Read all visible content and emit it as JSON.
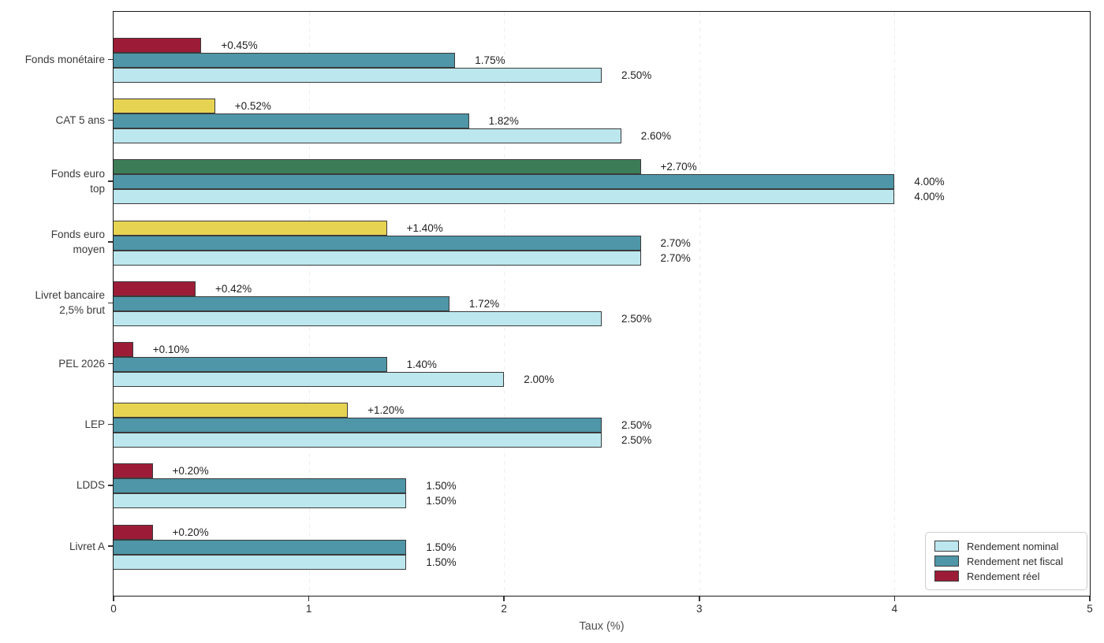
{
  "chart_data": {
    "type": "bar",
    "orientation": "horizontal",
    "title": "",
    "xlabel": "Taux (%)",
    "ylabel": "",
    "xlim": [
      0,
      5
    ],
    "xticks": [
      0,
      1,
      2,
      3,
      4,
      5
    ],
    "grid": "vertical dashed at 1,2,3,4",
    "legend_position": "lower right",
    "bar_order_top_to_bottom": [
      "reel",
      "net",
      "nominal"
    ],
    "legend": [
      {
        "name": "Rendement nominal",
        "color": "#bce7ee"
      },
      {
        "name": "Rendement net fiscal",
        "color": "#4e96a8"
      },
      {
        "name": "Rendement réel",
        "color": "#9c1c37"
      }
    ],
    "colors": {
      "nominal": "#bce7ee",
      "net": "#4e96a8",
      "reel_negative_low": "#9c1c37",
      "reel_medium": "#e7d352",
      "reel_high": "#3c7d58",
      "bar_edge": "#3b3b3b"
    },
    "rows": [
      {
        "label_lines": [
          "Fonds monétaire"
        ],
        "reel": 0.45,
        "reel_label": "+0.45%",
        "reel_color": "#9c1c37",
        "net": 1.75,
        "net_label": "1.75%",
        "nominal": 2.5,
        "nominal_label": "2.50%"
      },
      {
        "label_lines": [
          "CAT 5 ans"
        ],
        "reel": 0.52,
        "reel_label": "+0.52%",
        "reel_color": "#e7d352",
        "net": 1.82,
        "net_label": "1.82%",
        "nominal": 2.6,
        "nominal_label": "2.60%"
      },
      {
        "label_lines": [
          "Fonds euro",
          "top"
        ],
        "reel": 2.7,
        "reel_label": "+2.70%",
        "reel_color": "#3c7d58",
        "net": 4.0,
        "net_label": "4.00%",
        "nominal": 4.0,
        "nominal_label": "4.00%"
      },
      {
        "label_lines": [
          "Fonds euro",
          "moyen"
        ],
        "reel": 1.4,
        "reel_label": "+1.40%",
        "reel_color": "#e7d352",
        "net": 2.7,
        "net_label": "2.70%",
        "nominal": 2.7,
        "nominal_label": "2.70%"
      },
      {
        "label_lines": [
          "Livret bancaire",
          "2,5% brut"
        ],
        "reel": 0.42,
        "reel_label": "+0.42%",
        "reel_color": "#9c1c37",
        "net": 1.72,
        "net_label": "1.72%",
        "nominal": 2.5,
        "nominal_label": "2.50%"
      },
      {
        "label_lines": [
          "PEL 2026"
        ],
        "reel": 0.1,
        "reel_label": "+0.10%",
        "reel_color": "#9c1c37",
        "net": 1.4,
        "net_label": "1.40%",
        "nominal": 2.0,
        "nominal_label": "2.00%"
      },
      {
        "label_lines": [
          "LEP"
        ],
        "reel": 1.2,
        "reel_label": "+1.20%",
        "reel_color": "#e7d352",
        "net": 2.5,
        "net_label": "2.50%",
        "nominal": 2.5,
        "nominal_label": "2.50%"
      },
      {
        "label_lines": [
          "LDDS"
        ],
        "reel": 0.2,
        "reel_label": "+0.20%",
        "reel_color": "#9c1c37",
        "net": 1.5,
        "net_label": "1.50%",
        "nominal": 1.5,
        "nominal_label": "1.50%"
      },
      {
        "label_lines": [
          "Livret A"
        ],
        "reel": 0.2,
        "reel_label": "+0.20%",
        "reel_color": "#9c1c37",
        "net": 1.5,
        "net_label": "1.50%",
        "nominal": 1.5,
        "nominal_label": "1.50%"
      }
    ]
  }
}
